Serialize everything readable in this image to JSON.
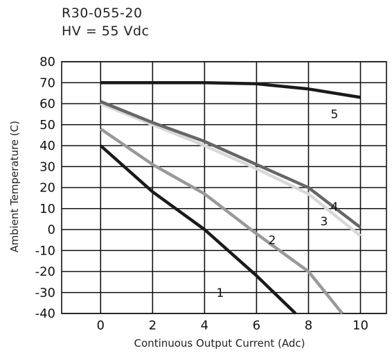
{
  "chart_data": {
    "type": "line",
    "title": "R30-055-20",
    "subtitle": "HV = 55 Vdc",
    "xlabel": "Continuous Output Current (Adc)",
    "ylabel": "Ambient Temperature (C)",
    "xlim": [
      -1.5,
      11
    ],
    "ylim": [
      -40,
      80
    ],
    "xticks": [
      0,
      2,
      4,
      6,
      8,
      10
    ],
    "yticks": [
      80,
      70,
      60,
      50,
      40,
      30,
      20,
      10,
      0,
      -10,
      -20,
      -30,
      -40
    ],
    "grid": true,
    "colors": {
      "1": "#1a1a1a",
      "2": "#999999",
      "3": "#d8d8d8",
      "4": "#666666",
      "5": "#1a1a1a"
    },
    "series": [
      {
        "label": "1",
        "x": [
          0,
          2,
          4,
          6,
          7.5
        ],
        "y": [
          40,
          18,
          0,
          -22,
          -40
        ]
      },
      {
        "label": "2",
        "x": [
          0,
          2,
          4,
          6,
          8,
          9.3
        ],
        "y": [
          48,
          31,
          17,
          -2,
          -20,
          -40
        ]
      },
      {
        "label": "3",
        "x": [
          0,
          2,
          4,
          6,
          8,
          10
        ],
        "y": [
          60,
          50,
          40,
          29,
          17,
          -3
        ]
      },
      {
        "label": "4",
        "x": [
          0,
          2,
          4,
          6,
          8,
          10
        ],
        "y": [
          61,
          51,
          42,
          31,
          20,
          1
        ]
      },
      {
        "label": "5",
        "x": [
          0,
          2,
          4,
          6,
          8,
          10
        ],
        "y": [
          70,
          70,
          70,
          69.5,
          67,
          63
        ]
      }
    ],
    "series_label_positions": [
      {
        "label": "1",
        "x": 4.6,
        "y": -32
      },
      {
        "label": "2",
        "x": 6.6,
        "y": -7
      },
      {
        "label": "3",
        "x": 8.6,
        "y": 2
      },
      {
        "label": "4",
        "x": 9.0,
        "y": 9
      },
      {
        "label": "5",
        "x": 9.0,
        "y": 53
      }
    ]
  }
}
